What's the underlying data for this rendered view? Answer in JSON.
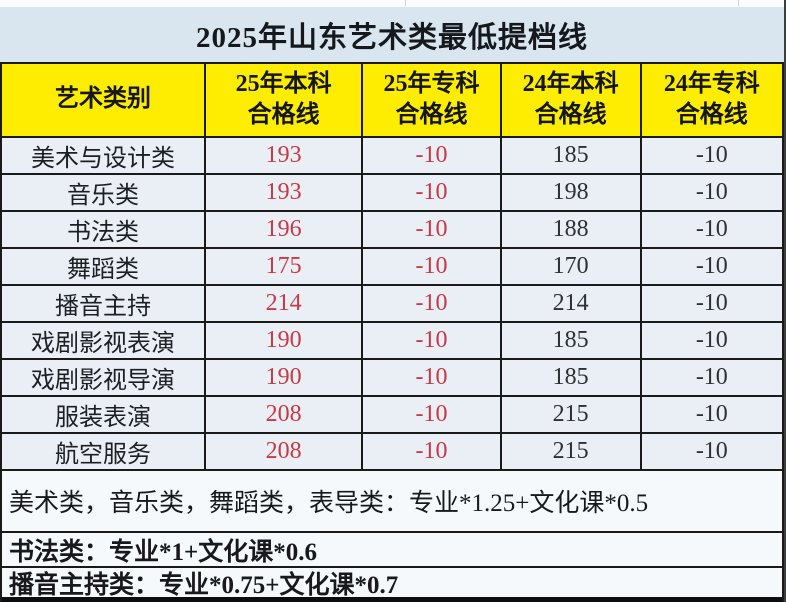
{
  "title": "2025年山东艺术类最低提档线",
  "colors": {
    "header_bg": "#feed00",
    "title_bg": "#d9e6f0",
    "cell_bg": "#e9eff5",
    "value_red": "#c53a47",
    "value_black": "#2e3033",
    "border": "#1a1a1a"
  },
  "table": {
    "columns": [
      {
        "label": "艺术类别",
        "value_color": "#1c1f23"
      },
      {
        "label": "25年本科\n合格线",
        "value_color": "#c53a47"
      },
      {
        "label": "25年专科\n合格线",
        "value_color": "#c53a47"
      },
      {
        "label": "24年本科\n合格线",
        "value_color": "#2e3033"
      },
      {
        "label": "24年专科\n合格线",
        "value_color": "#2e3033"
      }
    ],
    "rows": [
      {
        "category": "美术与设计类",
        "values": [
          "193",
          "-10",
          "185",
          "-10"
        ]
      },
      {
        "category": "音乐类",
        "values": [
          "193",
          "-10",
          "198",
          "-10"
        ]
      },
      {
        "category": "书法类",
        "values": [
          "196",
          "-10",
          "188",
          "-10"
        ]
      },
      {
        "category": "舞蹈类",
        "values": [
          "175",
          "-10",
          "170",
          "-10"
        ]
      },
      {
        "category": "播音主持",
        "values": [
          "214",
          "-10",
          "214",
          "-10"
        ]
      },
      {
        "category": "戏剧影视表演",
        "values": [
          "190",
          "-10",
          "185",
          "-10"
        ]
      },
      {
        "category": "戏剧影视导演",
        "values": [
          "190",
          "-10",
          "185",
          "-10"
        ]
      },
      {
        "category": "服装表演",
        "values": [
          "208",
          "-10",
          "215",
          "-10"
        ]
      },
      {
        "category": "航空服务",
        "values": [
          "208",
          "-10",
          "215",
          "-10"
        ]
      }
    ]
  },
  "notes": [
    {
      "text": "美术类，音乐类，舞蹈类，表导类：专业*1.25+文化课*0.5"
    },
    {
      "text": "书法类：专业*1+文化课*0.6"
    },
    {
      "text": "播音主持类：专业*0.75+文化课*0.7"
    }
  ],
  "chart_data": {
    "type": "table",
    "title": "2025年山东艺术类最低提档线",
    "columns": [
      "艺术类别",
      "25年本科合格线",
      "25年专科合格线",
      "24年本科合格线",
      "24年专科合格线"
    ],
    "rows": [
      [
        "美术与设计类",
        193,
        -10,
        185,
        -10
      ],
      [
        "音乐类",
        193,
        -10,
        198,
        -10
      ],
      [
        "书法类",
        196,
        -10,
        188,
        -10
      ],
      [
        "舞蹈类",
        175,
        -10,
        170,
        -10
      ],
      [
        "播音主持",
        214,
        -10,
        214,
        -10
      ],
      [
        "戏剧影视表演",
        190,
        -10,
        185,
        -10
      ],
      [
        "戏剧影视导演",
        190,
        -10,
        185,
        -10
      ],
      [
        "服装表演",
        208,
        -10,
        215,
        -10
      ],
      [
        "航空服务",
        208,
        -10,
        215,
        -10
      ]
    ],
    "annotations": [
      "美术类，音乐类，舞蹈类，表导类：专业*1.25+文化课*0.5",
      "书法类：专业*1+文化课*0.6",
      "播音主持类：专业*0.75+文化课*0.7"
    ],
    "layout_hints": {
      "header_bg": "yellow",
      "col1_values_color": "red",
      "col2_values_color": "red",
      "col3_values_color": "black",
      "col4_values_color": "black"
    }
  }
}
